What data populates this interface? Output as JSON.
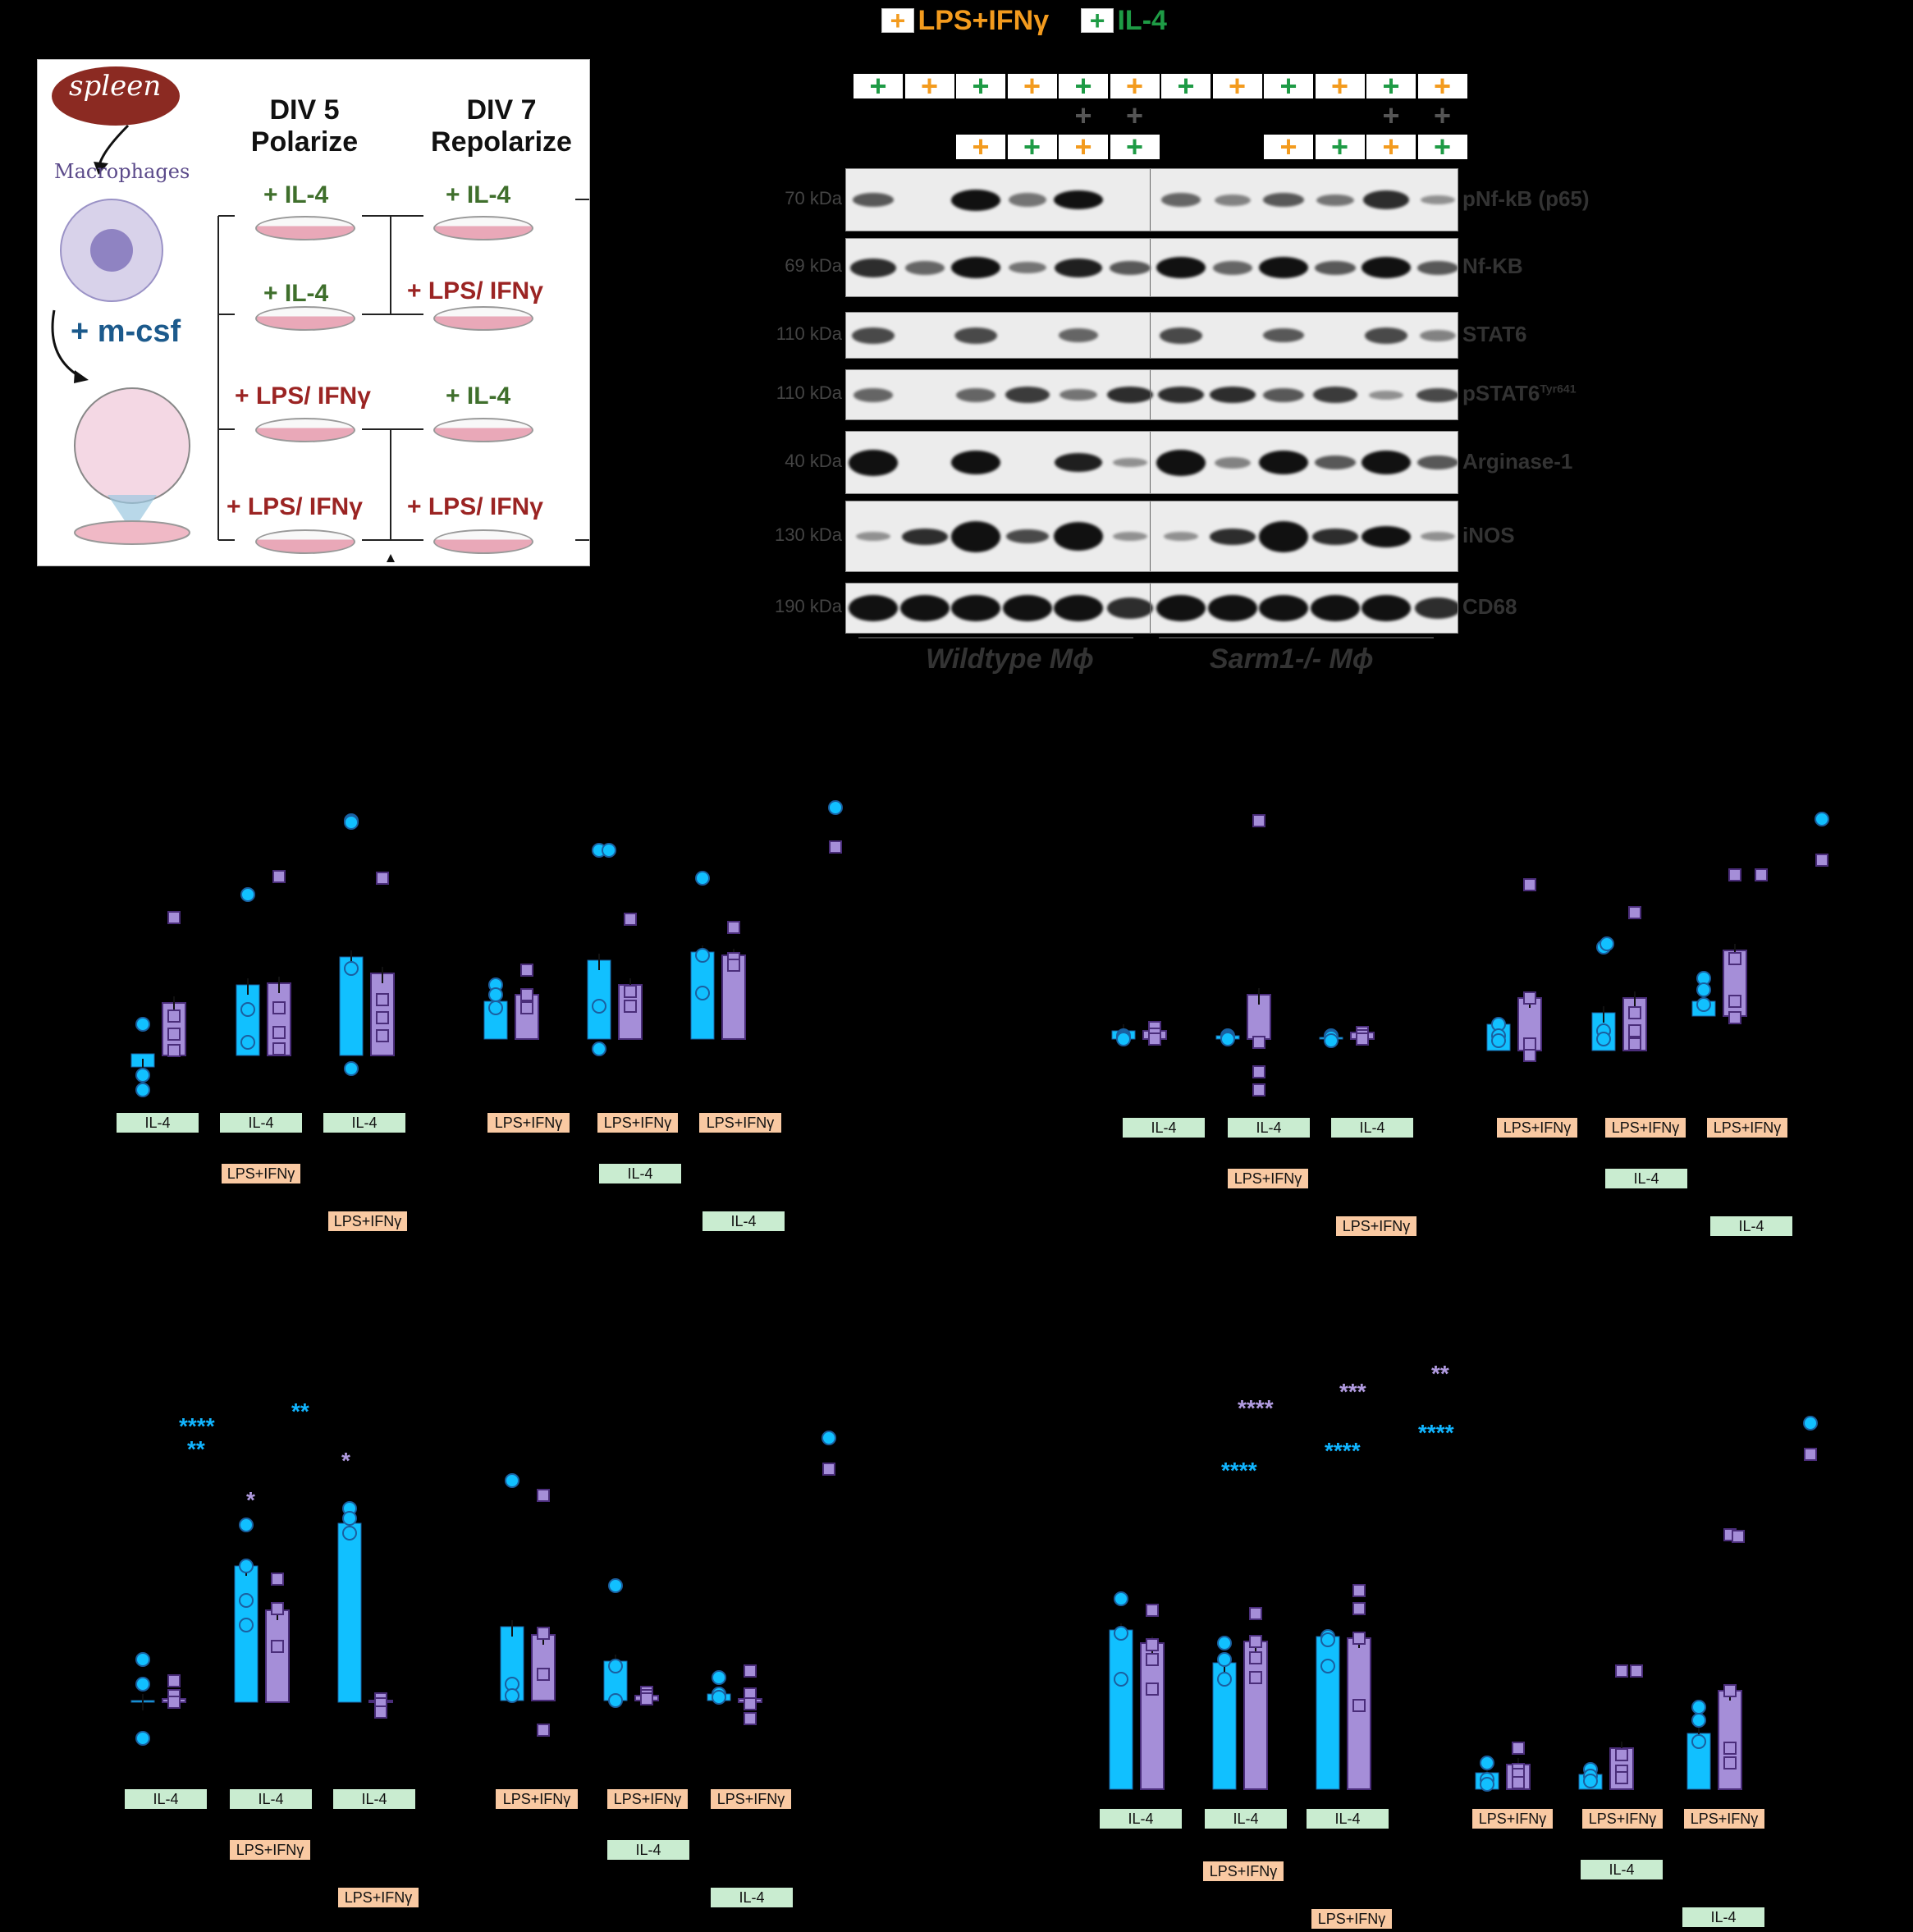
{
  "colors": {
    "wildtype": "#11c0ff",
    "sarm1": "#a58ed8",
    "il4_tag": "#c9ecd0",
    "lps_tag": "#f9c9a2",
    "il4_plus": "#1e9b45",
    "lps_plus": "#f39b1e"
  },
  "panel_a": {
    "spleen": "spleen",
    "macrophages": "Macrophages",
    "mcsf": "+ m-csf",
    "div5": "DIV 5\nPolarize",
    "div7": "DIV 7\nRepolarize",
    "polarize": [
      "+ IL-4",
      "+ IL-4",
      "+ LPS/ IFNγ",
      "+ LPS/ IFNγ"
    ],
    "repolarize": [
      "+ IL-4",
      "+ LPS/ IFNγ",
      "+ IL-4",
      "+ LPS/ IFNγ"
    ]
  },
  "western": {
    "legend_lps": "LPS+IFNγ",
    "legend_il4": "IL-4",
    "row1": [
      "+",
      "+",
      "+",
      "+",
      "+",
      "+",
      "+",
      "+",
      "+",
      "+",
      "+",
      "+"
    ],
    "row1_colors": [
      "green",
      "orange",
      "green",
      "orange",
      "green",
      "orange",
      "green",
      "orange",
      "green",
      "orange",
      "green",
      "orange"
    ],
    "row2": [
      "+",
      "+",
      "+",
      "+"
    ],
    "row3": [
      "+",
      "+",
      "+",
      "+",
      "+",
      "+",
      "+",
      "+"
    ],
    "row3_colors": [
      "orange",
      "green",
      "orange",
      "green",
      "orange",
      "green",
      "orange",
      "green"
    ],
    "kda": [
      "70 kDa",
      "69 kDa",
      "110 kDa",
      "110 kDa",
      "40 kDa",
      "130 kDa",
      "190 kDa"
    ],
    "proteins": [
      "pNf-kB (p65)",
      "Nf-KB",
      "STAT6",
      "pSTAT6",
      "Arginase-1",
      "iNOS",
      "CD68"
    ],
    "pstat6_sup": "Tyr641",
    "genotype_wt": "Wildtype Mϕ",
    "genotype_ko": "Sarm1-/- Mϕ"
  },
  "tags": {
    "il4": "IL-4",
    "lps": "LPS+IFNγ"
  },
  "stars": {
    "p1_a": "****",
    "p1_b": "**",
    "p1_c": "**",
    "p1_d": "*",
    "p1_e": "*",
    "p2_a": "****",
    "p2_b": "****",
    "p2_c": "***",
    "p2_d": "****",
    "p2_e": "**",
    "p2_f": "****"
  }
}
